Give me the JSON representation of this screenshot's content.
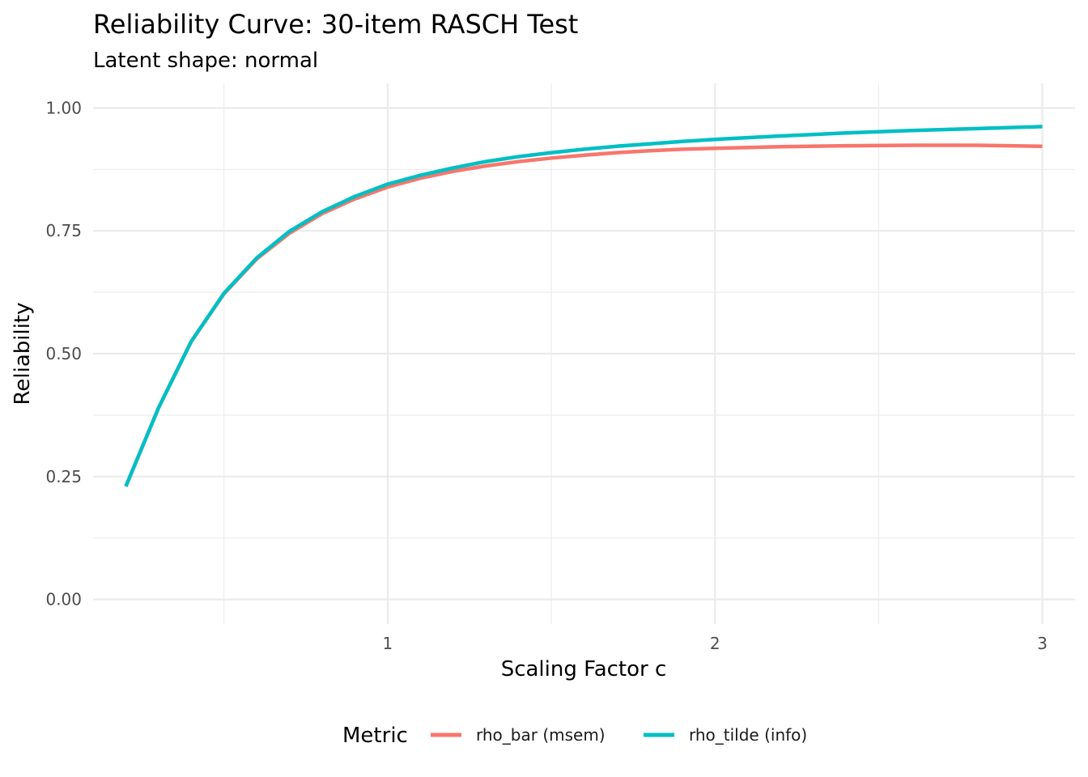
{
  "chart_data": {
    "type": "line",
    "title": "Reliability Curve: 30-item RASCH Test",
    "subtitle": "Latent shape: normal",
    "xlabel": "Scaling Factor c",
    "ylabel": "Reliability",
    "xlim": [
      0.1,
      3.1
    ],
    "ylim": [
      -0.05,
      1.05
    ],
    "x_ticks": [
      1,
      2,
      3
    ],
    "x_tick_labels": [
      "1",
      "2",
      "3"
    ],
    "x_minor_ticks": [
      0.5,
      1.5,
      2.5
    ],
    "y_ticks": [
      0,
      0.25,
      0.5,
      0.75,
      1
    ],
    "y_tick_labels": [
      "0.00",
      "0.25",
      "0.50",
      "0.75",
      "1.00"
    ],
    "y_minor_ticks": [
      0.125,
      0.375,
      0.625,
      0.875
    ],
    "grid": true,
    "legend": {
      "title": "Metric",
      "position": "bottom"
    },
    "series": [
      {
        "name": "rho_bar (msem)",
        "color": "#F8766D",
        "x": [
          0.2,
          0.3,
          0.4,
          0.5,
          0.6,
          0.7,
          0.8,
          0.9,
          1.0,
          1.1,
          1.2,
          1.3,
          1.4,
          1.5,
          1.6,
          1.7,
          1.8,
          1.9,
          2.0,
          2.2,
          2.4,
          2.6,
          2.8,
          3.0
        ],
        "values": [
          0.23,
          0.39,
          0.525,
          0.622,
          0.693,
          0.745,
          0.785,
          0.815,
          0.839,
          0.857,
          0.871,
          0.882,
          0.891,
          0.898,
          0.904,
          0.909,
          0.913,
          0.916,
          0.918,
          0.921,
          0.923,
          0.924,
          0.924,
          0.922
        ]
      },
      {
        "name": "rho_tilde (info)",
        "color": "#00BFC4",
        "x": [
          0.2,
          0.3,
          0.4,
          0.5,
          0.6,
          0.7,
          0.8,
          0.9,
          1.0,
          1.1,
          1.2,
          1.3,
          1.4,
          1.5,
          1.6,
          1.7,
          1.8,
          1.9,
          2.0,
          2.2,
          2.4,
          2.6,
          2.8,
          3.0
        ],
        "values": [
          0.23,
          0.39,
          0.525,
          0.623,
          0.695,
          0.749,
          0.789,
          0.82,
          0.845,
          0.863,
          0.878,
          0.891,
          0.901,
          0.909,
          0.916,
          0.922,
          0.927,
          0.932,
          0.936,
          0.943,
          0.949,
          0.954,
          0.958,
          0.962
        ]
      }
    ]
  }
}
